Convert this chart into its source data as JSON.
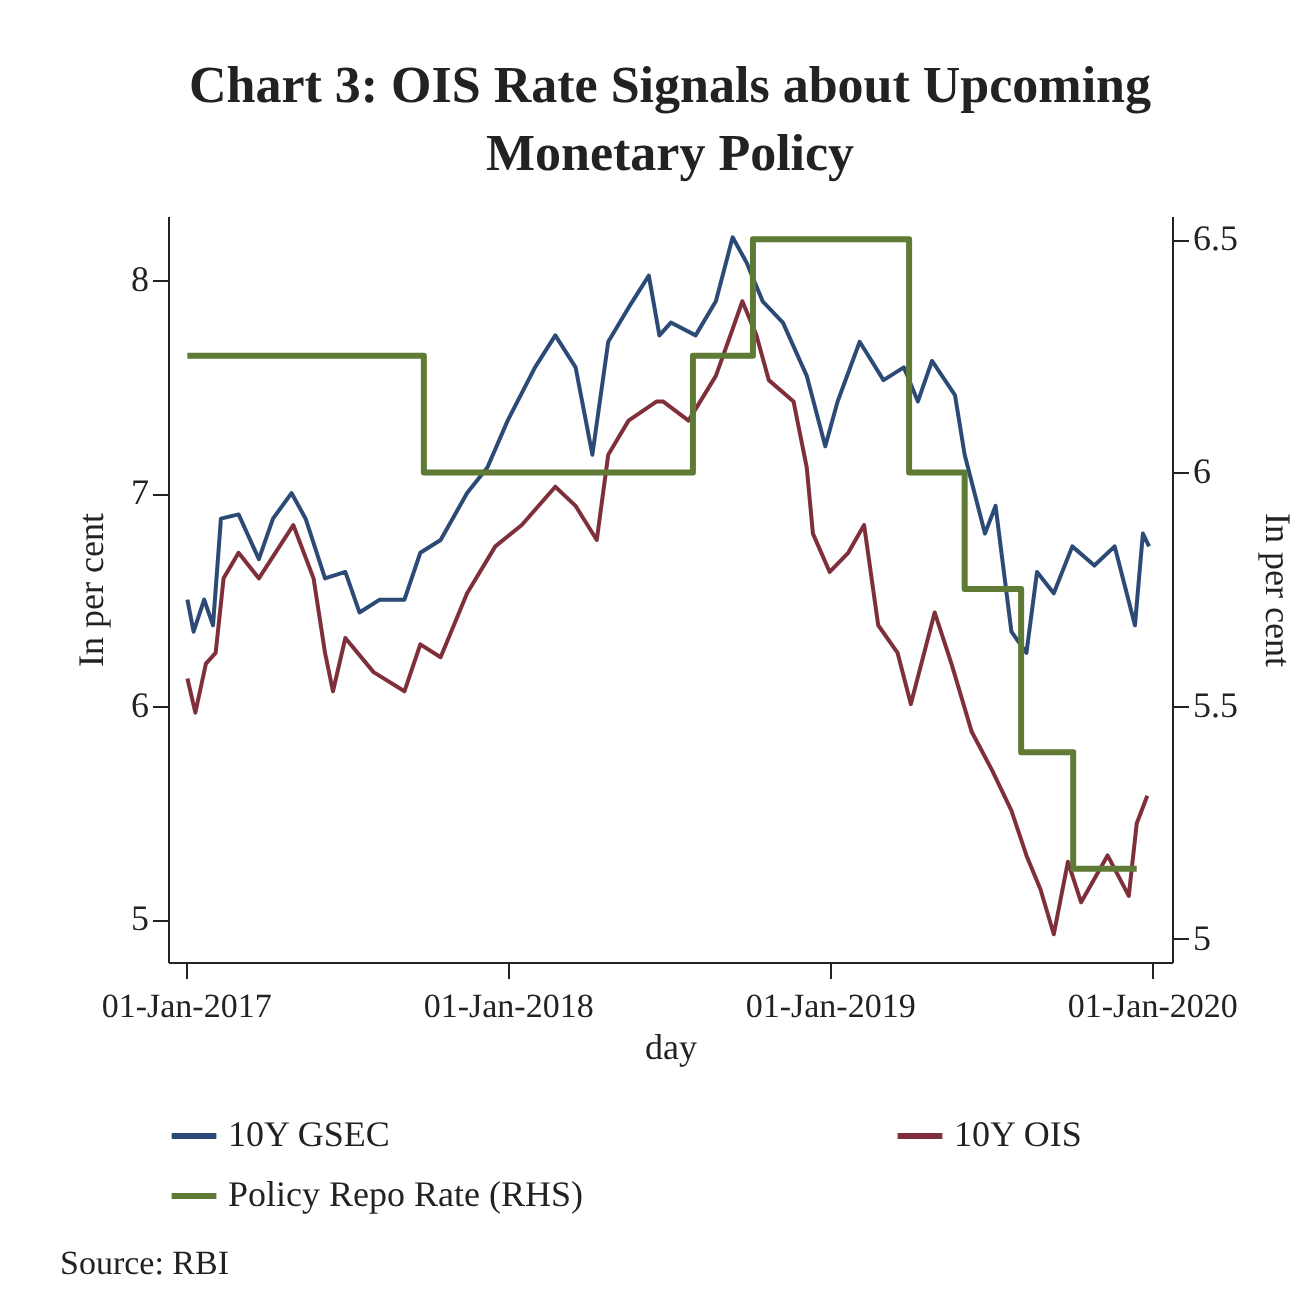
{
  "chart_data": {
    "type": "line",
    "title": "Chart 3: OIS Rate Signals about Upcoming Monetary Policy",
    "xlabel": "day",
    "ylabel": "In per cent",
    "y2label": "In per cent",
    "xlim": [
      "2016-12-12",
      "2020-01-24"
    ],
    "xticks": [
      {
        "value": "2017-01-01",
        "label": "01-Jan-2017"
      },
      {
        "value": "2018-01-01",
        "label": "01-Jan-2018"
      },
      {
        "value": "2019-01-01",
        "label": "01-Jan-2019"
      },
      {
        "value": "2020-01-01",
        "label": "01-Jan-2020"
      }
    ],
    "ylim": [
      4.8,
      8.3
    ],
    "yticks": [
      5,
      6,
      7,
      8
    ],
    "y2lim": [
      4.95,
      6.55
    ],
    "y2ticks": [
      5,
      5.5,
      6,
      6.5
    ],
    "legend": "bottom",
    "annotations": [
      "Source: RBI"
    ],
    "series": [
      {
        "name": "10Y GSEC",
        "color": "#2b4a75",
        "x": [
          "2017-01-03",
          "2017-01-10",
          "2017-01-22",
          "2017-02-01",
          "2017-02-10",
          "2017-03-02",
          "2017-03-25",
          "2017-04-10",
          "2017-05-01",
          "2017-05-17",
          "2017-06-08",
          "2017-07-01",
          "2017-07-17",
          "2017-08-09",
          "2017-09-06",
          "2017-09-24",
          "2017-10-17",
          "2017-11-16",
          "2017-12-09",
          "2018-01-01",
          "2018-02-01",
          "2018-02-24",
          "2018-03-19",
          "2018-04-07",
          "2018-04-25",
          "2018-05-18",
          "2018-06-10",
          "2018-06-22",
          "2018-07-05",
          "2018-08-02",
          "2018-08-25",
          "2018-09-13",
          "2018-09-29",
          "2018-10-17",
          "2018-11-09",
          "2018-12-06",
          "2018-12-27",
          "2019-01-10",
          "2019-02-04",
          "2019-03-03",
          "2019-03-26",
          "2019-04-11",
          "2019-04-27",
          "2019-05-23",
          "2019-06-03",
          "2019-06-26",
          "2019-07-08",
          "2019-07-26",
          "2019-08-12",
          "2019-08-24",
          "2019-09-12",
          "2019-10-03",
          "2019-10-28",
          "2019-11-20",
          "2019-12-13",
          "2019-12-22",
          "2019-12-29"
        ],
        "values": [
          6.5,
          6.35,
          6.5,
          6.38,
          6.88,
          6.9,
          6.69,
          6.88,
          7.0,
          6.88,
          6.6,
          6.63,
          6.44,
          6.5,
          6.5,
          6.72,
          6.78,
          7.0,
          7.12,
          7.34,
          7.59,
          7.74,
          7.59,
          7.18,
          7.71,
          7.87,
          8.02,
          7.74,
          7.8,
          7.74,
          7.9,
          8.2,
          8.08,
          7.9,
          7.8,
          7.55,
          7.22,
          7.43,
          7.71,
          7.53,
          7.59,
          7.43,
          7.62,
          7.46,
          7.18,
          6.81,
          6.94,
          6.35,
          6.25,
          6.63,
          6.53,
          6.75,
          6.66,
          6.75,
          6.38,
          6.81,
          6.75
        ]
      },
      {
        "name": "10Y OIS",
        "color": "#7e2f3a",
        "x": [
          "2017-01-03",
          "2017-01-12",
          "2017-01-24",
          "2017-02-04",
          "2017-02-13",
          "2017-03-02",
          "2017-03-25",
          "2017-05-03",
          "2017-05-26",
          "2017-06-08",
          "2017-06-17",
          "2017-07-01",
          "2017-08-02",
          "2017-09-06",
          "2017-09-24",
          "2017-10-17",
          "2017-11-16",
          "2017-12-18",
          "2018-01-17",
          "2018-02-24",
          "2018-03-19",
          "2018-04-12",
          "2018-04-25",
          "2018-05-18",
          "2018-06-19",
          "2018-06-26",
          "2018-07-25",
          "2018-08-25",
          "2018-09-13",
          "2018-09-24",
          "2018-10-10",
          "2018-10-24",
          "2018-11-21",
          "2018-12-06",
          "2018-12-13",
          "2019-01-01",
          "2019-01-22",
          "2019-02-09",
          "2019-02-25",
          "2019-03-19",
          "2019-04-03",
          "2019-04-30",
          "2019-05-19",
          "2019-06-11",
          "2019-07-04",
          "2019-07-26",
          "2019-08-12",
          "2019-08-28",
          "2019-09-12",
          "2019-09-28",
          "2019-10-13",
          "2019-11-12",
          "2019-12-06",
          "2019-12-15",
          "2019-12-27"
        ],
        "values": [
          6.13,
          5.97,
          6.2,
          6.25,
          6.6,
          6.72,
          6.6,
          6.85,
          6.6,
          6.25,
          6.07,
          6.32,
          6.16,
          6.07,
          6.29,
          6.23,
          6.53,
          6.75,
          6.85,
          7.03,
          6.94,
          6.78,
          7.18,
          7.34,
          7.43,
          7.43,
          7.34,
          7.55,
          7.77,
          7.9,
          7.74,
          7.53,
          7.43,
          7.12,
          6.81,
          6.63,
          6.72,
          6.85,
          6.38,
          6.25,
          6.01,
          6.44,
          6.2,
          5.88,
          5.7,
          5.51,
          5.3,
          5.14,
          4.93,
          5.27,
          5.08,
          5.3,
          5.11,
          5.45,
          5.58
        ]
      },
      {
        "name": "Policy Repo Rate (RHS)",
        "type": "step",
        "axis": "y2",
        "color": "#5e7a35",
        "x": [
          "2017-01-03",
          "2017-09-28",
          "2018-07-30",
          "2018-10-06",
          "2019-04-01",
          "2019-06-03",
          "2019-08-06",
          "2019-10-04",
          "2019-12-15"
        ],
        "values": [
          6.25,
          6.0,
          6.25,
          6.5,
          6.0,
          5.75,
          5.4,
          5.15,
          5.15
        ]
      }
    ]
  }
}
